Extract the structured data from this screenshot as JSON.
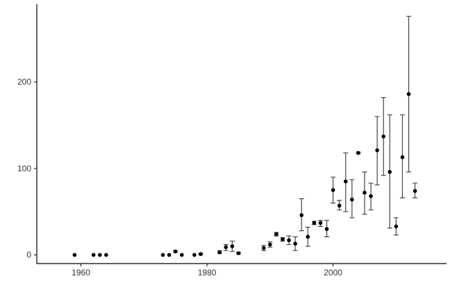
{
  "chart_data": {
    "type": "scatter",
    "title": "",
    "xlabel": "",
    "ylabel": "",
    "xlim": [
      1953,
      2018
    ],
    "ylim": [
      -10,
      290
    ],
    "x_ticks": [
      1960,
      1980,
      2000
    ],
    "y_ticks": [
      0,
      100,
      200
    ],
    "x_tick_labels": [
      "1960",
      "1980",
      "2000"
    ],
    "y_tick_labels": [
      "0",
      "100",
      "200"
    ],
    "grid": false,
    "legend": "none",
    "colors": {
      "point": "#000000",
      "errorbar": "#444444"
    },
    "points": [
      {
        "x": 1959,
        "y": 0,
        "low": 0,
        "high": 0
      },
      {
        "x": 1962,
        "y": 0,
        "low": 0,
        "high": 0
      },
      {
        "x": 1963,
        "y": 0,
        "low": 0,
        "high": 0
      },
      {
        "x": 1964,
        "y": 0,
        "low": 0,
        "high": 0
      },
      {
        "x": 1973,
        "y": 0,
        "low": 0,
        "high": 0
      },
      {
        "x": 1974,
        "y": 0,
        "low": 0,
        "high": 0
      },
      {
        "x": 1975,
        "y": 4,
        "low": 3,
        "high": 5
      },
      {
        "x": 1976,
        "y": 0,
        "low": 0,
        "high": 0
      },
      {
        "x": 1978,
        "y": 0,
        "low": 0,
        "high": 0
      },
      {
        "x": 1979,
        "y": 1,
        "low": 0,
        "high": 2
      },
      {
        "x": 1982,
        "y": 3,
        "low": 2,
        "high": 5
      },
      {
        "x": 1983,
        "y": 9,
        "low": 5,
        "high": 12
      },
      {
        "x": 1984,
        "y": 10,
        "low": 4,
        "high": 16
      },
      {
        "x": 1985,
        "y": 2,
        "low": 1,
        "high": 3
      },
      {
        "x": 1989,
        "y": 8,
        "low": 5,
        "high": 11
      },
      {
        "x": 1990,
        "y": 12,
        "low": 9,
        "high": 15
      },
      {
        "x": 1991,
        "y": 24,
        "low": 22,
        "high": 26
      },
      {
        "x": 1992,
        "y": 18,
        "low": 16,
        "high": 20
      },
      {
        "x": 1993,
        "y": 17,
        "low": 12,
        "high": 22
      },
      {
        "x": 1994,
        "y": 13,
        "low": 5,
        "high": 21
      },
      {
        "x": 1995,
        "y": 46,
        "low": 28,
        "high": 65
      },
      {
        "x": 1996,
        "y": 21,
        "low": 10,
        "high": 32
      },
      {
        "x": 1997,
        "y": 37,
        "low": 35,
        "high": 39
      },
      {
        "x": 1998,
        "y": 37,
        "low": 33,
        "high": 40
      },
      {
        "x": 1999,
        "y": 30,
        "low": 21,
        "high": 40
      },
      {
        "x": 2000,
        "y": 75,
        "low": 60,
        "high": 90
      },
      {
        "x": 2001,
        "y": 57,
        "low": 52,
        "high": 63
      },
      {
        "x": 2002,
        "y": 85,
        "low": 50,
        "high": 118
      },
      {
        "x": 2003,
        "y": 64,
        "low": 43,
        "high": 87
      },
      {
        "x": 2004,
        "y": 118,
        "low": 117,
        "high": 119
      },
      {
        "x": 2005,
        "y": 72,
        "low": 47,
        "high": 96
      },
      {
        "x": 2006,
        "y": 68,
        "low": 52,
        "high": 83
      },
      {
        "x": 2007,
        "y": 121,
        "low": 81,
        "high": 160
      },
      {
        "x": 2008,
        "y": 137,
        "low": 92,
        "high": 182
      },
      {
        "x": 2009,
        "y": 96,
        "low": 31,
        "high": 162
      },
      {
        "x": 2010,
        "y": 33,
        "low": 23,
        "high": 43
      },
      {
        "x": 2011,
        "y": 113,
        "low": 66,
        "high": 162
      },
      {
        "x": 2012,
        "y": 186,
        "low": 96,
        "high": 276
      },
      {
        "x": 2013,
        "y": 74,
        "low": 66,
        "high": 83
      }
    ]
  }
}
